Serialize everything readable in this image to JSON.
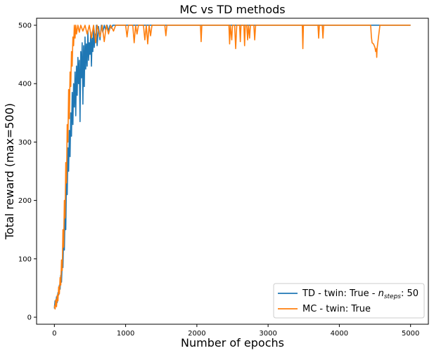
{
  "chart_data": {
    "type": "line",
    "title": "MC vs TD methods",
    "xlabel": "Number of epochs",
    "ylabel": "Total reward (max=500)",
    "xlim": [
      -250,
      5250
    ],
    "ylim": [
      -12,
      512
    ],
    "xticks": [
      0,
      1000,
      2000,
      3000,
      4000,
      5000
    ],
    "yticks": [
      0,
      100,
      200,
      300,
      400,
      500
    ],
    "legend_position": "lower-right",
    "legend": {
      "td_prefix": "TD - twin: True - ",
      "td_symbol": "n",
      "td_subscript": "steps",
      "td_suffix": ": 50",
      "mc": "MC - twin: True"
    },
    "series": [
      {
        "name": "TD - twin: True - n_steps: 50",
        "color": "#1f77b4",
        "points": [
          [
            0,
            15
          ],
          [
            10,
            28
          ],
          [
            20,
            22
          ],
          [
            30,
            35
          ],
          [
            40,
            25
          ],
          [
            50,
            42
          ],
          [
            60,
            38
          ],
          [
            70,
            55
          ],
          [
            80,
            48
          ],
          [
            90,
            72
          ],
          [
            100,
            60
          ],
          [
            110,
            95
          ],
          [
            120,
            85
          ],
          [
            130,
            140
          ],
          [
            140,
            115
          ],
          [
            150,
            185
          ],
          [
            160,
            150
          ],
          [
            170,
            240
          ],
          [
            180,
            210
          ],
          [
            190,
            290
          ],
          [
            200,
            250
          ],
          [
            210,
            320
          ],
          [
            220,
            275
          ],
          [
            230,
            350
          ],
          [
            240,
            310
          ],
          [
            250,
            385
          ],
          [
            260,
            330
          ],
          [
            270,
            400
          ],
          [
            280,
            360
          ],
          [
            290,
            420
          ],
          [
            300,
            345
          ],
          [
            310,
            430
          ],
          [
            320,
            380
          ],
          [
            330,
            445
          ],
          [
            340,
            400
          ],
          [
            350,
            440
          ],
          [
            360,
            335
          ],
          [
            370,
            455
          ],
          [
            380,
            410
          ],
          [
            390,
            470
          ],
          [
            400,
            365
          ],
          [
            410,
            465
          ],
          [
            420,
            395
          ],
          [
            430,
            480
          ],
          [
            440,
            425
          ],
          [
            450,
            468
          ],
          [
            460,
            430
          ],
          [
            470,
            490
          ],
          [
            480,
            440
          ],
          [
            490,
            470
          ],
          [
            500,
            450
          ],
          [
            510,
            488
          ],
          [
            520,
            430
          ],
          [
            530,
            478
          ],
          [
            540,
            455
          ],
          [
            550,
            495
          ],
          [
            560,
            462
          ],
          [
            570,
            485
          ],
          [
            580,
            470
          ],
          [
            590,
            500
          ],
          [
            600,
            465
          ],
          [
            620,
            498
          ],
          [
            640,
            475
          ],
          [
            660,
            500
          ],
          [
            680,
            488
          ],
          [
            700,
            500
          ],
          [
            720,
            492
          ],
          [
            740,
            500
          ],
          [
            760,
            490
          ],
          [
            780,
            500
          ],
          [
            800,
            495
          ],
          [
            820,
            500
          ],
          [
            850,
            500
          ],
          [
            5000,
            500
          ]
        ]
      },
      {
        "name": "MC - twin: True",
        "color": "#ff7f0e",
        "points": [
          [
            0,
            20
          ],
          [
            10,
            14
          ],
          [
            20,
            30
          ],
          [
            30,
            18
          ],
          [
            40,
            38
          ],
          [
            50,
            28
          ],
          [
            60,
            52
          ],
          [
            70,
            40
          ],
          [
            80,
            68
          ],
          [
            90,
            55
          ],
          [
            100,
            98
          ],
          [
            110,
            80
          ],
          [
            120,
            150
          ],
          [
            130,
            120
          ],
          [
            140,
            200
          ],
          [
            150,
            170
          ],
          [
            160,
            265
          ],
          [
            170,
            230
          ],
          [
            180,
            330
          ],
          [
            190,
            300
          ],
          [
            200,
            390
          ],
          [
            210,
            340
          ],
          [
            220,
            420
          ],
          [
            230,
            395
          ],
          [
            240,
            455
          ],
          [
            250,
            430
          ],
          [
            260,
            480
          ],
          [
            270,
            465
          ],
          [
            280,
            500
          ],
          [
            290,
            478
          ],
          [
            300,
            500
          ],
          [
            310,
            485
          ],
          [
            330,
            500
          ],
          [
            350,
            488
          ],
          [
            370,
            500
          ],
          [
            400,
            490
          ],
          [
            430,
            500
          ],
          [
            460,
            485
          ],
          [
            490,
            500
          ],
          [
            520,
            478
          ],
          [
            550,
            500
          ],
          [
            580,
            470
          ],
          [
            600,
            500
          ],
          [
            640,
            480
          ],
          [
            670,
            500
          ],
          [
            700,
            472
          ],
          [
            730,
            500
          ],
          [
            760,
            485
          ],
          [
            790,
            500
          ],
          [
            830,
            490
          ],
          [
            860,
            500
          ],
          [
            1000,
            500
          ],
          [
            1020,
            480
          ],
          [
            1040,
            500
          ],
          [
            1100,
            500
          ],
          [
            1120,
            470
          ],
          [
            1140,
            500
          ],
          [
            1160,
            485
          ],
          [
            1180,
            500
          ],
          [
            1250,
            500
          ],
          [
            1270,
            475
          ],
          [
            1290,
            500
          ],
          [
            1310,
            468
          ],
          [
            1330,
            500
          ],
          [
            1350,
            482
          ],
          [
            1370,
            500
          ],
          [
            1550,
            500
          ],
          [
            1565,
            482
          ],
          [
            1580,
            500
          ],
          [
            2050,
            500
          ],
          [
            2060,
            472
          ],
          [
            2070,
            500
          ],
          [
            2450,
            500
          ],
          [
            2460,
            468
          ],
          [
            2470,
            500
          ],
          [
            2490,
            475
          ],
          [
            2500,
            500
          ],
          [
            2530,
            500
          ],
          [
            2545,
            460
          ],
          [
            2560,
            500
          ],
          [
            2600,
            500
          ],
          [
            2610,
            472
          ],
          [
            2620,
            500
          ],
          [
            2660,
            500
          ],
          [
            2670,
            465
          ],
          [
            2680,
            500
          ],
          [
            2700,
            500
          ],
          [
            2712,
            475
          ],
          [
            2725,
            500
          ],
          [
            2740,
            478
          ],
          [
            2752,
            500
          ],
          [
            2800,
            500
          ],
          [
            2812,
            475
          ],
          [
            2825,
            500
          ],
          [
            3480,
            500
          ],
          [
            3488,
            460
          ],
          [
            3496,
            500
          ],
          [
            3700,
            500
          ],
          [
            3710,
            478
          ],
          [
            3720,
            500
          ],
          [
            3760,
            500
          ],
          [
            3770,
            478
          ],
          [
            3780,
            500
          ],
          [
            4440,
            500
          ],
          [
            4450,
            480
          ],
          [
            4460,
            470
          ],
          [
            4480,
            468
          ],
          [
            4500,
            462
          ],
          [
            4510,
            455
          ],
          [
            4520,
            460
          ],
          [
            4525,
            445
          ],
          [
            4530,
            460
          ],
          [
            4540,
            470
          ],
          [
            4550,
            480
          ],
          [
            4560,
            490
          ],
          [
            4570,
            500
          ],
          [
            5000,
            500
          ]
        ]
      }
    ]
  }
}
